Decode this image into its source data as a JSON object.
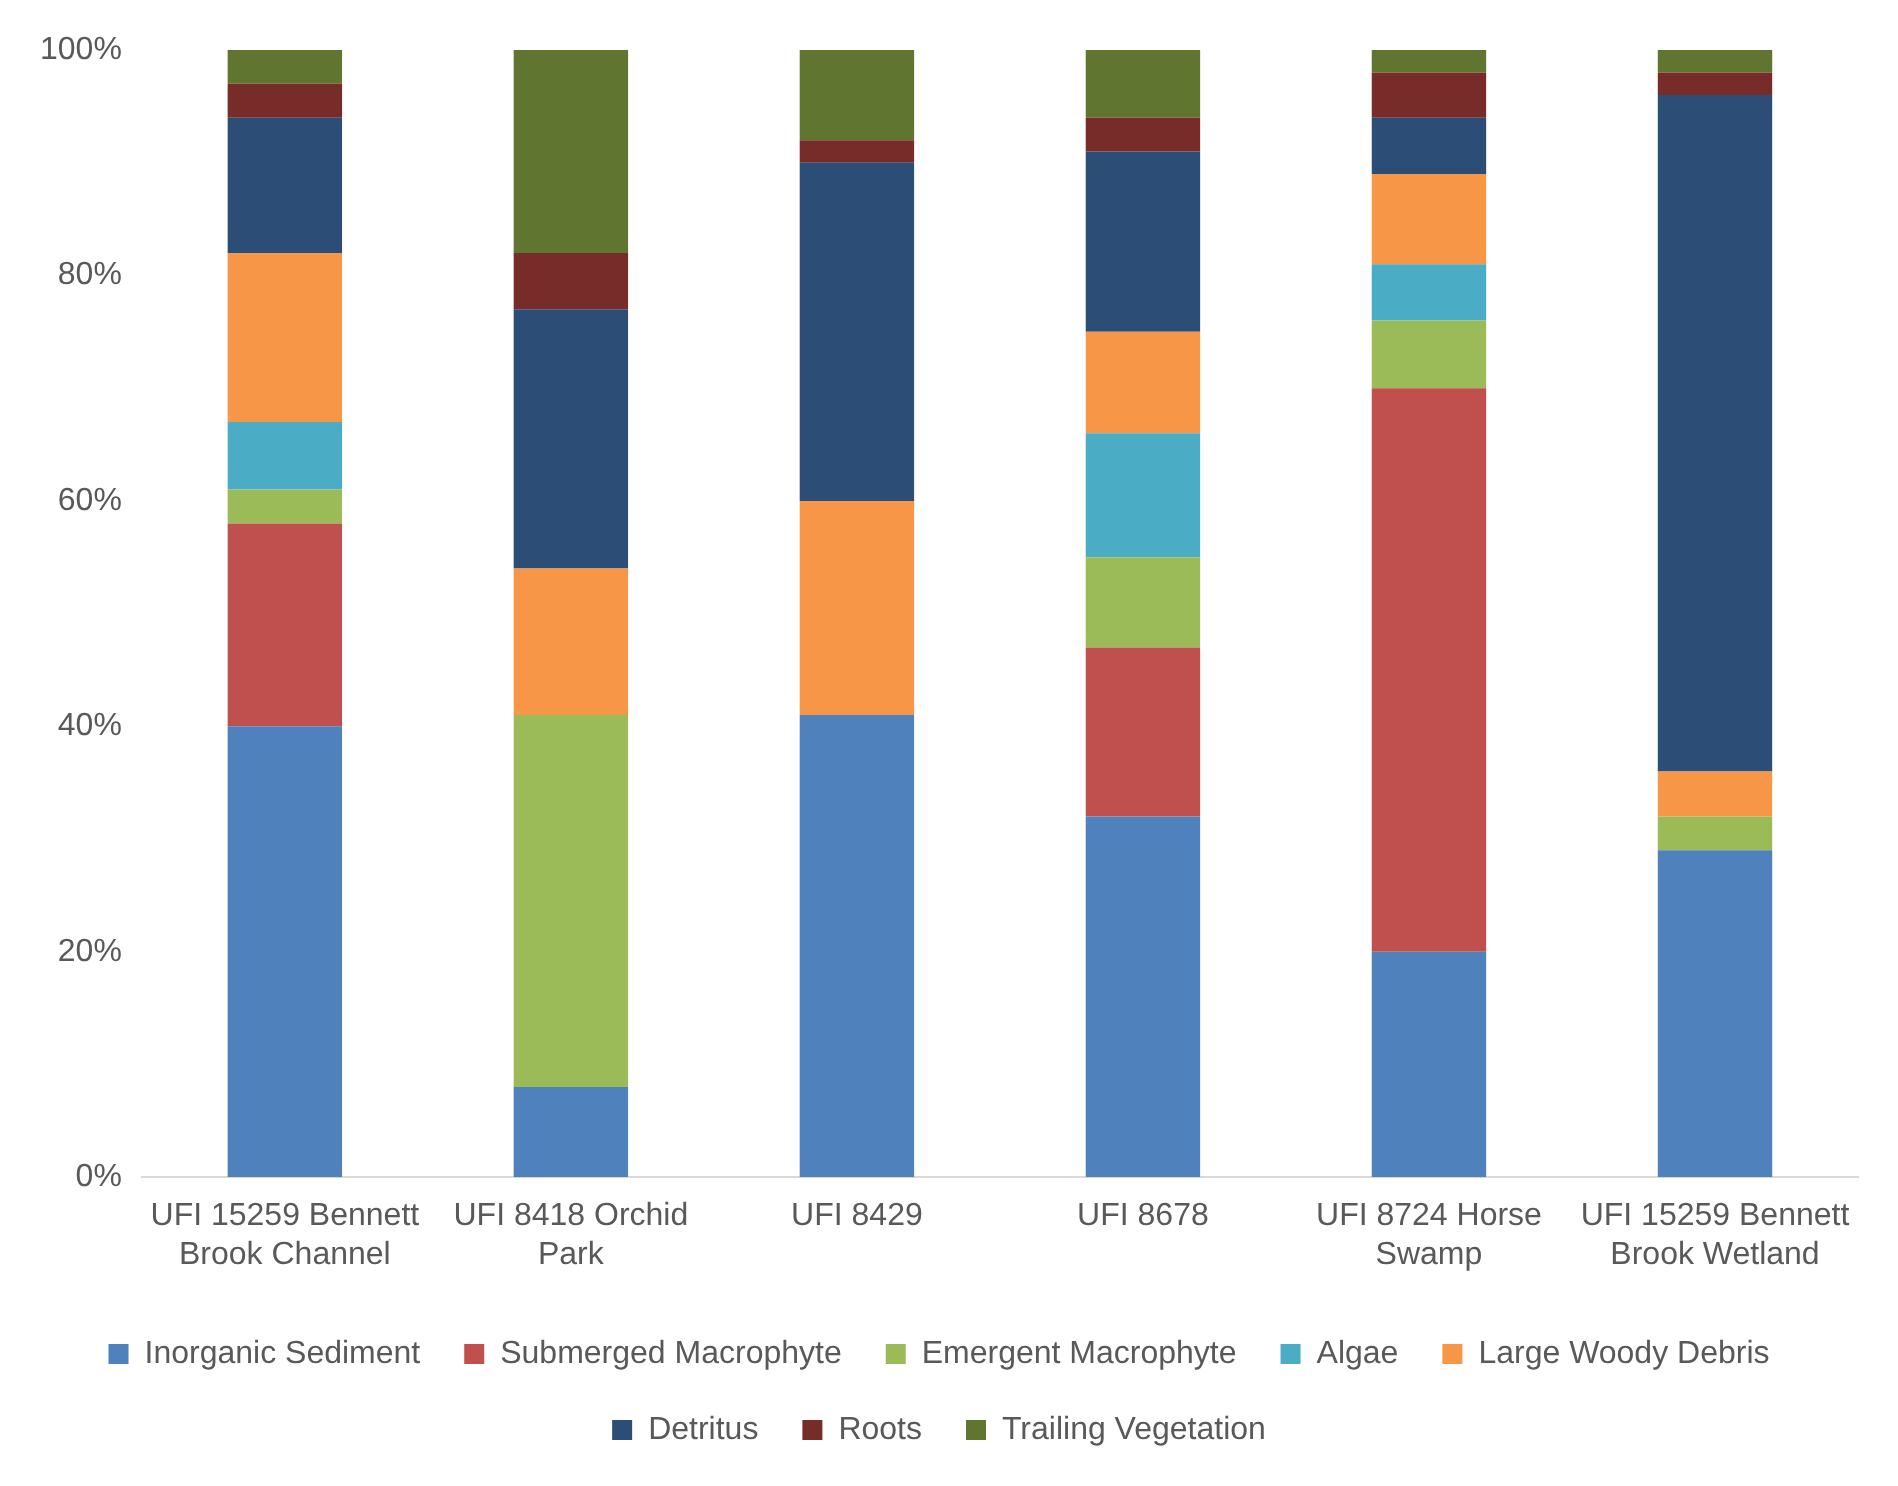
{
  "chart_data": {
    "type": "bar",
    "stacked": true,
    "categories": [
      "UFI 15259 Bennett Brook Channel",
      "UFI 8418 Orchid Park",
      "UFI 8429",
      "UFI 8678",
      "UFI 8724 Horse Swamp",
      "UFI 15259 Bennett Brook Wetland"
    ],
    "series": [
      {
        "name": "Inorganic Sediment",
        "color": "#4f81bd",
        "values": [
          40,
          8,
          41,
          32,
          20,
          29
        ]
      },
      {
        "name": "Submerged Macrophyte",
        "color": "#c0504d",
        "values": [
          18,
          0,
          0,
          15,
          50,
          0
        ]
      },
      {
        "name": "Emergent Macrophyte",
        "color": "#9bbb59",
        "values": [
          3,
          33,
          0,
          8,
          6,
          3
        ]
      },
      {
        "name": "Algae",
        "color": "#4bacc6",
        "values": [
          6,
          0,
          0,
          11,
          5,
          0
        ]
      },
      {
        "name": "Large Woody Debris",
        "color": "#f79646",
        "values": [
          15,
          13,
          19,
          9,
          8,
          4
        ]
      },
      {
        "name": "Detritus",
        "color": "#2c4d75",
        "values": [
          12,
          23,
          30,
          16,
          5,
          60
        ]
      },
      {
        "name": "Roots",
        "color": "#772c2a",
        "values": [
          3,
          5,
          2,
          3,
          4,
          2
        ]
      },
      {
        "name": "Trailing Vegetation",
        "color": "#5f7530",
        "values": [
          3,
          18,
          8,
          6,
          2,
          2
        ]
      }
    ],
    "ylim": [
      0,
      100
    ],
    "yticks": [
      {
        "value": 0,
        "label": "0%"
      },
      {
        "value": 20,
        "label": "20%"
      },
      {
        "value": 40,
        "label": "40%"
      },
      {
        "value": 60,
        "label": "60%"
      },
      {
        "value": 80,
        "label": "80%"
      },
      {
        "value": 100,
        "label": "100%"
      }
    ],
    "grid": false,
    "legend": "bottom"
  }
}
